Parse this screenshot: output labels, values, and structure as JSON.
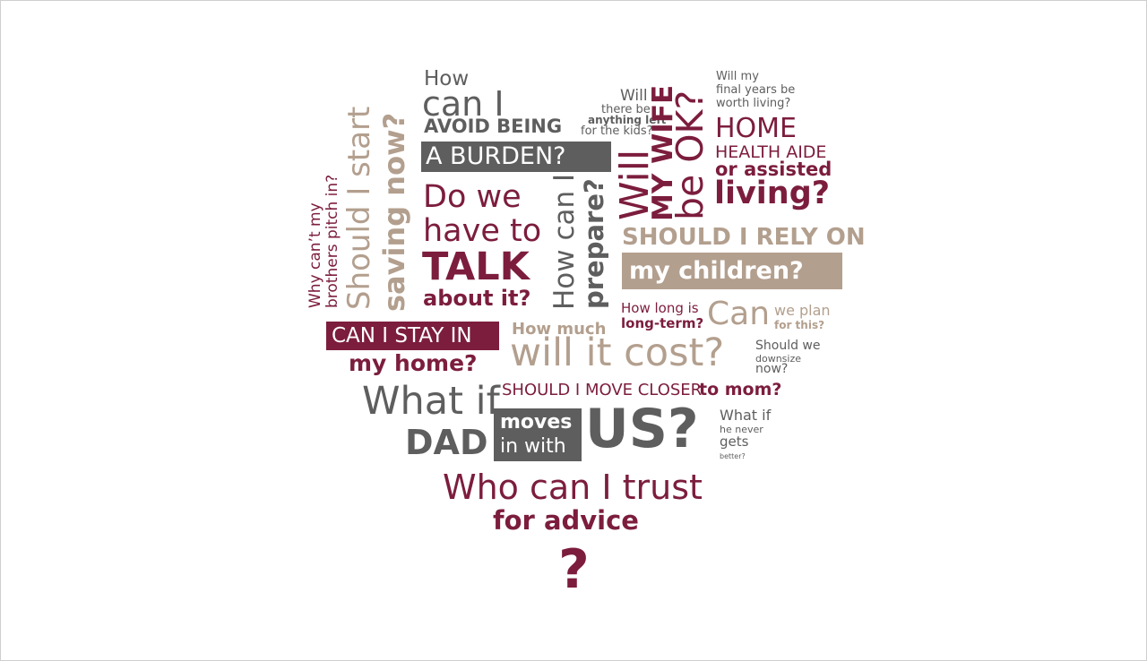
{
  "phrases": {
    "how": "How",
    "can_i": "can I",
    "avoid_being": "AVOID BEING",
    "a_burden": "A BURDEN?",
    "do_we": "Do we",
    "have_to": "have to",
    "talk": "TALK",
    "about_it": "about it?",
    "should_i_start": "Should I start",
    "saving_now": "saving now?",
    "why_cant_my": "Why can’t my",
    "brothers_pitch_in": "brothers pitch in?",
    "how_can_i": "How can I",
    "prepare": "prepare?",
    "will": "Will",
    "there_be": "there be",
    "anything_left": "anything left",
    "for_the_kids": "for the kids?",
    "will_big": "Will",
    "my_wife": "MY WIFE",
    "be_ok": "be OK?",
    "will_my": "Will my",
    "final_years_be": "final years be",
    "worth_living": "worth living?",
    "home": "HOME",
    "health_aide": "HEALTH AIDE",
    "or_assisted": "or assisted",
    "living": "living?",
    "should_i_rely_on": "SHOULD I RELY ON",
    "my_children": "my children?",
    "how_long_is": "How long is",
    "long_term": "long-term?",
    "can": "Can",
    "we_plan": "we plan",
    "for_this": "for this?",
    "can_i_stay_in": "CAN I STAY IN",
    "my_home": "my home?",
    "how_much": "How much",
    "will_it_cost": "will it cost?",
    "should_we": "Should we",
    "downsize": "downsize",
    "now": "now?",
    "should_i_move_closer": "SHOULD I MOVE CLOSER",
    "to_mom": "to mom?",
    "what_if": "What if",
    "dad": "DAD",
    "moves": "moves",
    "in_with": "in with",
    "us": "US?",
    "what_if_small": "What if",
    "he_never": "he never",
    "gets": "gets",
    "better": "better?",
    "who_can_i_trust": "Who can I trust",
    "for_advice": "for advice",
    "question_mark": "?"
  },
  "colors": {
    "gray": "#5e5e5e",
    "maroon": "#7c1d3d",
    "tan": "#b39f8e",
    "background": "#ffffff"
  }
}
